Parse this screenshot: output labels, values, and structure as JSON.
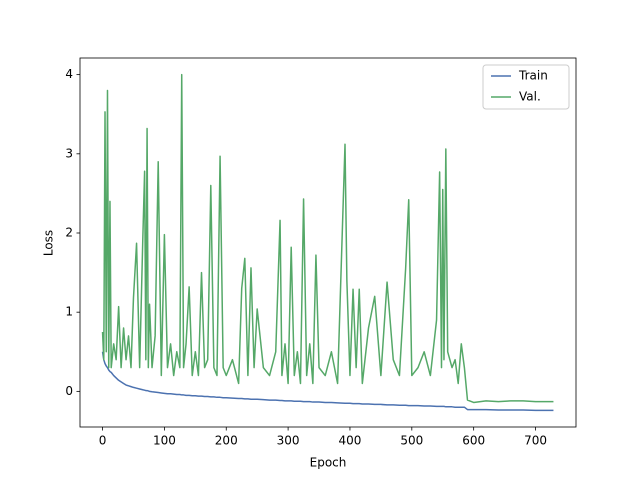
{
  "chart_data": {
    "type": "line",
    "xlabel": "Epoch",
    "ylabel": "Loss",
    "x": [
      0,
      2,
      4,
      6,
      8,
      10,
      12,
      14,
      18,
      22,
      26,
      30,
      34,
      38,
      42,
      46,
      50,
      55,
      60,
      65,
      68,
      70,
      72,
      74,
      76,
      80,
      85,
      90,
      95,
      100,
      105,
      110,
      115,
      120,
      125,
      128,
      131,
      135,
      140,
      145,
      150,
      155,
      160,
      165,
      170,
      175,
      180,
      185,
      190,
      195,
      200,
      210,
      220,
      225,
      230,
      235,
      240,
      245,
      250,
      260,
      270,
      280,
      287,
      290,
      295,
      300,
      305,
      310,
      315,
      320,
      325,
      330,
      335,
      340,
      345,
      350,
      360,
      370,
      380,
      392,
      395,
      400,
      405,
      410,
      415,
      420,
      430,
      440,
      450,
      460,
      470,
      480,
      490,
      495,
      500,
      510,
      520,
      530,
      540,
      545,
      548,
      550,
      552,
      555,
      558,
      565,
      570,
      575,
      580,
      585,
      590,
      600,
      620,
      640,
      660,
      680,
      700,
      729
    ],
    "series": [
      {
        "name": "Train",
        "color": "#4c72b0",
        "values": [
          0.5,
          0.4,
          0.35,
          0.32,
          0.3,
          0.27,
          0.25,
          0.24,
          0.2,
          0.17,
          0.14,
          0.12,
          0.1,
          0.08,
          0.07,
          0.06,
          0.05,
          0.04,
          0.03,
          0.02,
          0.015,
          0.01,
          0.01,
          0.005,
          0,
          -0.005,
          -0.01,
          -0.015,
          -0.02,
          -0.025,
          -0.03,
          -0.03,
          -0.035,
          -0.04,
          -0.04,
          -0.045,
          -0.045,
          -0.05,
          -0.05,
          -0.055,
          -0.055,
          -0.06,
          -0.06,
          -0.065,
          -0.065,
          -0.07,
          -0.07,
          -0.075,
          -0.075,
          -0.08,
          -0.08,
          -0.085,
          -0.09,
          -0.09,
          -0.095,
          -0.095,
          -0.1,
          -0.1,
          -0.1,
          -0.105,
          -0.11,
          -0.11,
          -0.115,
          -0.115,
          -0.12,
          -0.12,
          -0.12,
          -0.125,
          -0.125,
          -0.125,
          -0.13,
          -0.13,
          -0.13,
          -0.135,
          -0.135,
          -0.135,
          -0.14,
          -0.14,
          -0.145,
          -0.15,
          -0.15,
          -0.15,
          -0.155,
          -0.155,
          -0.155,
          -0.16,
          -0.16,
          -0.165,
          -0.165,
          -0.17,
          -0.17,
          -0.175,
          -0.175,
          -0.18,
          -0.18,
          -0.18,
          -0.185,
          -0.185,
          -0.19,
          -0.19,
          -0.19,
          -0.19,
          -0.19,
          -0.195,
          -0.195,
          -0.195,
          -0.2,
          -0.2,
          -0.2,
          -0.2,
          -0.23,
          -0.23,
          -0.23,
          -0.235,
          -0.235,
          -0.235,
          -0.24,
          -0.24
        ]
      },
      {
        "name": "Val.",
        "color": "#55a868",
        "values": [
          0.75,
          0.4,
          3.53,
          0.5,
          3.8,
          0.3,
          2.4,
          0.3,
          0.6,
          0.4,
          1.07,
          0.3,
          0.8,
          0.4,
          0.7,
          0.3,
          1.18,
          1.87,
          0.3,
          1.9,
          2.78,
          0.4,
          3.32,
          0.3,
          1.1,
          0.3,
          0.7,
          2.9,
          0.2,
          1.98,
          0.3,
          0.6,
          0.2,
          0.5,
          0.3,
          4.0,
          0.3,
          0.6,
          1.32,
          0.2,
          0.5,
          0.2,
          1.5,
          0.3,
          0.4,
          2.6,
          0.3,
          0.2,
          2.97,
          0.3,
          0.2,
          0.4,
          0.1,
          1.3,
          1.68,
          0.2,
          1.56,
          0.3,
          1.04,
          0.3,
          0.2,
          0.5,
          2.16,
          0.2,
          0.6,
          0.1,
          1.82,
          0.2,
          0.5,
          0.1,
          2.43,
          0.2,
          0.6,
          0.1,
          1.72,
          0.3,
          0.2,
          0.5,
          0.1,
          3.12,
          1.4,
          0.2,
          1.29,
          0.3,
          1.29,
          0.1,
          0.8,
          1.2,
          0.2,
          1.38,
          0.4,
          0.2,
          1.55,
          2.42,
          0.2,
          0.3,
          0.5,
          0.2,
          0.9,
          2.77,
          0.3,
          2.55,
          0.4,
          3.06,
          0.5,
          0.3,
          0.4,
          0.1,
          0.6,
          0.3,
          -0.11,
          -0.14,
          -0.12,
          -0.13,
          -0.12,
          -0.12,
          -0.13,
          -0.13
        ]
      }
    ],
    "xlim": [
      -36.45,
      765.45
    ],
    "ylim": [
      -0.45,
      4.21
    ],
    "xticks": [
      0,
      100,
      200,
      300,
      400,
      500,
      600,
      700
    ],
    "yticks": [
      0,
      1,
      2,
      3,
      4
    ],
    "legend": "upper right"
  }
}
